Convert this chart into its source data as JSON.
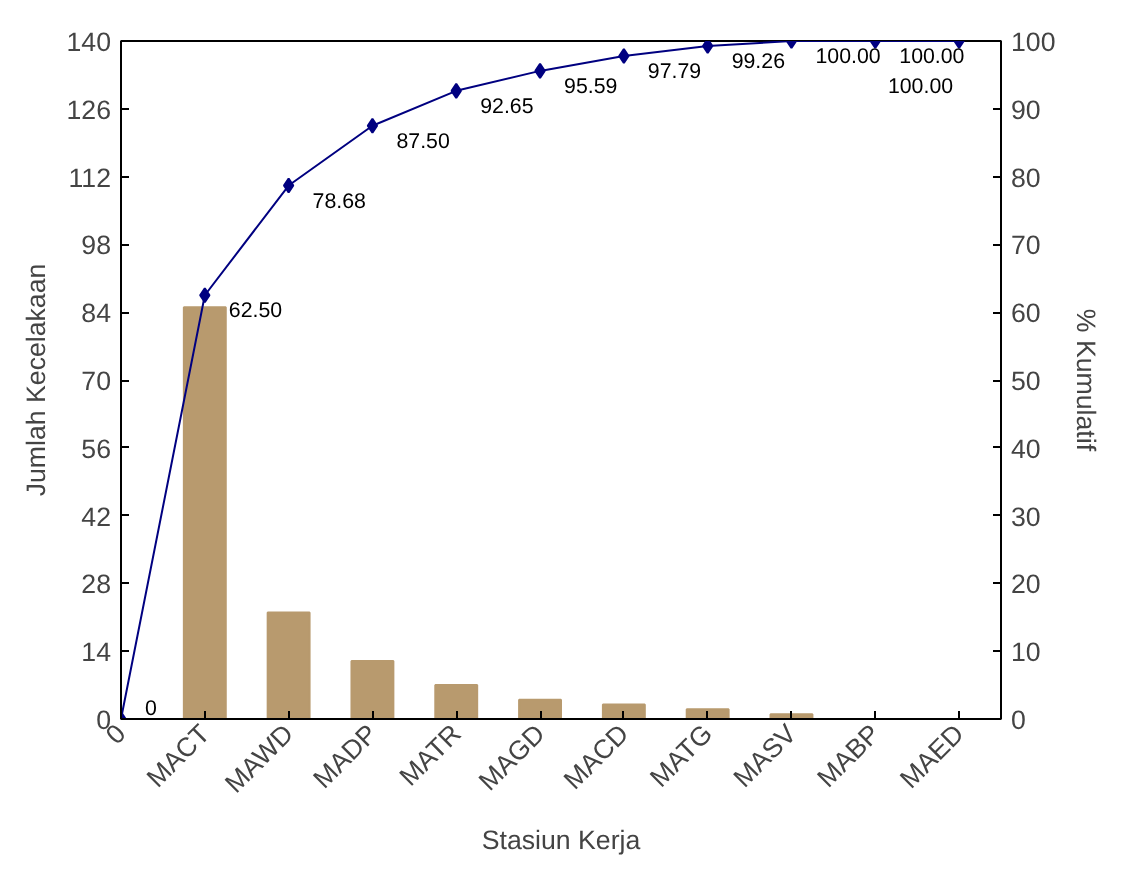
{
  "chart_data": {
    "type": "bar",
    "xlabel": "Stasiun Kerja",
    "ylabel": "Jumlah Kecelakaan",
    "y2label": "% Kumulatif",
    "categories": [
      "0",
      "MACT",
      "MAWD",
      "MADP",
      "MATR",
      "MAGD",
      "MACD",
      "MATG",
      "MASV",
      "MABP",
      "MAED"
    ],
    "ylim": [
      0,
      140
    ],
    "yticks": [
      0,
      14,
      28,
      42,
      56,
      70,
      84,
      98,
      112,
      126,
      140
    ],
    "y2lim": [
      0,
      100
    ],
    "y2ticks": [
      0,
      10,
      20,
      30,
      40,
      50,
      60,
      70,
      80,
      90,
      100
    ],
    "grid": false,
    "series": [
      {
        "color": "#b89a6e",
        "values": [
          null,
          85,
          22,
          12,
          7,
          4,
          3,
          2,
          1,
          0,
          0
        ]
      },
      {
        "type": "line",
        "axis": "y2",
        "color": "#000080",
        "marker": "diamond",
        "line_style": "solid",
        "values": [
          0,
          62.5,
          78.68,
          87.5,
          92.65,
          95.59,
          97.79,
          99.26,
          100,
          100,
          100
        ],
        "value_labels": [
          "0",
          "62.50",
          "78.68",
          "87.50",
          "92.65",
          "95.59",
          "97.79",
          "99.26",
          "100.00",
          "100.00",
          "100.00"
        ]
      }
    ]
  }
}
